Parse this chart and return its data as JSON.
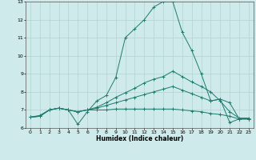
{
  "xlabel": "Humidex (Indice chaleur)",
  "background_color": "#ceeaea",
  "grid_color": "#b2d4d4",
  "line_color": "#1e7b6e",
  "xlim": [
    -0.5,
    23.5
  ],
  "ylim": [
    6.0,
    13.0
  ],
  "yticks": [
    6,
    7,
    8,
    9,
    10,
    11,
    12,
    13
  ],
  "xticks": [
    0,
    1,
    2,
    3,
    4,
    5,
    6,
    7,
    8,
    9,
    10,
    11,
    12,
    13,
    14,
    15,
    16,
    17,
    18,
    19,
    20,
    21,
    22,
    23
  ],
  "series": [
    {
      "x": [
        0,
        1,
        2,
        3,
        4,
        5,
        6,
        7,
        8,
        9,
        10,
        11,
        12,
        13,
        14,
        15,
        16,
        17,
        18,
        19,
        20,
        21,
        22,
        23
      ],
      "y": [
        6.6,
        6.7,
        7.0,
        7.1,
        7.0,
        6.2,
        6.9,
        7.5,
        7.8,
        8.8,
        11.0,
        11.5,
        12.0,
        12.7,
        13.0,
        13.0,
        11.3,
        10.3,
        9.0,
        7.5,
        7.6,
        6.3,
        6.5,
        6.5
      ]
    },
    {
      "x": [
        0,
        1,
        2,
        3,
        4,
        5,
        6,
        7,
        8,
        9,
        10,
        11,
        12,
        13,
        14,
        15,
        16,
        17,
        18,
        19,
        20,
        21,
        22,
        23
      ],
      "y": [
        6.6,
        6.65,
        7.0,
        7.1,
        7.0,
        6.9,
        7.0,
        7.1,
        7.25,
        7.4,
        7.55,
        7.7,
        7.85,
        8.0,
        8.15,
        8.3,
        8.1,
        7.9,
        7.7,
        7.5,
        7.6,
        7.4,
        6.5,
        6.5
      ]
    },
    {
      "x": [
        0,
        1,
        2,
        3,
        4,
        5,
        6,
        7,
        8,
        9,
        10,
        11,
        12,
        13,
        14,
        15,
        16,
        17,
        18,
        19,
        20,
        21,
        22,
        23
      ],
      "y": [
        6.6,
        6.65,
        7.0,
        7.1,
        7.0,
        6.9,
        7.0,
        7.0,
        7.0,
        7.05,
        7.05,
        7.05,
        7.05,
        7.05,
        7.05,
        7.05,
        7.0,
        6.95,
        6.9,
        6.8,
        6.75,
        6.65,
        6.5,
        6.5
      ]
    },
    {
      "x": [
        0,
        1,
        2,
        3,
        4,
        5,
        6,
        7,
        8,
        9,
        10,
        11,
        12,
        13,
        14,
        15,
        16,
        17,
        18,
        19,
        20,
        21,
        22,
        23
      ],
      "y": [
        6.6,
        6.65,
        7.0,
        7.1,
        7.0,
        6.9,
        7.0,
        7.15,
        7.4,
        7.7,
        7.95,
        8.2,
        8.5,
        8.7,
        8.85,
        9.15,
        8.85,
        8.55,
        8.3,
        8.0,
        7.5,
        6.9,
        6.55,
        6.55
      ]
    }
  ]
}
